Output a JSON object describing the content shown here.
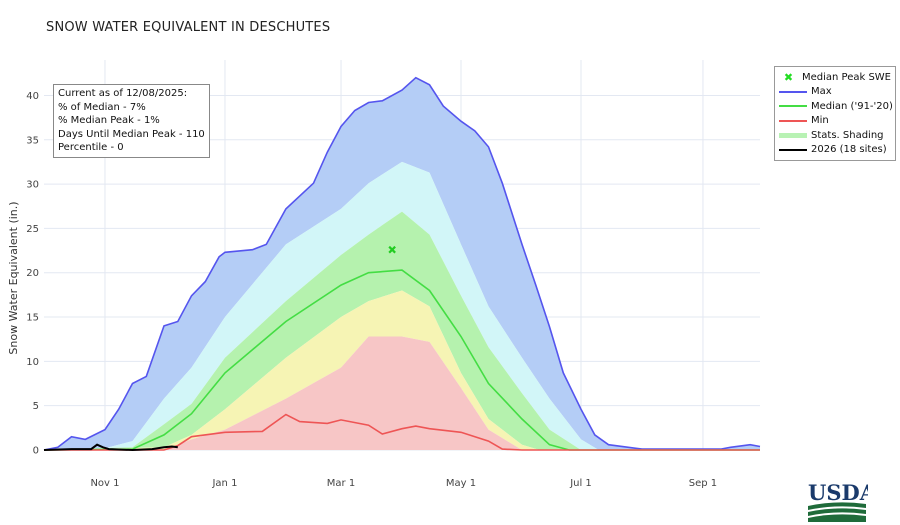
{
  "title": "SNOW WATER EQUIVALENT IN DESCHUTES",
  "info_box": {
    "lines": [
      "Current as of 12/08/2025:",
      "% of Median - 7%",
      "% Median Peak - 1%",
      "Days Until Median Peak - 110",
      "Percentile - 0"
    ]
  },
  "legend": [
    {
      "label": "Median Peak SWE",
      "color": "#22dd22",
      "kind": "marker"
    },
    {
      "label": "Max",
      "color": "#5555ee",
      "kind": "line"
    },
    {
      "label": "Median ('91-'20)",
      "color": "#44dd44",
      "kind": "line"
    },
    {
      "label": "Min",
      "color": "#ee5555",
      "kind": "line"
    },
    {
      "label": "Stats. Shading",
      "color": "#b8f2b4",
      "kind": "band"
    },
    {
      "label": "2026 (18 sites)",
      "color": "#000000",
      "kind": "line"
    }
  ],
  "logo": "USDA",
  "chart_data": {
    "type": "area",
    "title": "SNOW WATER EQUIVALENT IN DESCHUTES",
    "ylabel": "Snow Water Equivalent (in.)",
    "xlim": [
      "2025-10-01",
      "2026-09-30"
    ],
    "ylim": [
      0,
      44
    ],
    "yticks": [
      0,
      5,
      10,
      15,
      20,
      25,
      30,
      35,
      40
    ],
    "xticks": [
      {
        "date": "2025-11-01",
        "label": "Nov 1"
      },
      {
        "date": "2026-01-01",
        "label": "Jan 1"
      },
      {
        "date": "2026-03-01",
        "label": "Mar 1"
      },
      {
        "date": "2026-05-01",
        "label": "May 1"
      },
      {
        "date": "2026-07-01",
        "label": "Jul 1"
      },
      {
        "date": "2026-09-01",
        "label": "Sep 1"
      }
    ],
    "grid": true,
    "legend_position": "right",
    "band_colors": [
      "#b4cdf6",
      "#d2f6f8",
      "#b5f2ae",
      "#f6f4b4",
      "#f7c6c6"
    ],
    "series": {
      "max": [
        [
          "2025-10-01",
          0
        ],
        [
          "2025-10-08",
          0.3
        ],
        [
          "2025-10-15",
          1.5
        ],
        [
          "2025-10-22",
          1.2
        ],
        [
          "2025-11-01",
          2.3
        ],
        [
          "2025-11-08",
          4.6
        ],
        [
          "2025-11-15",
          7.5
        ],
        [
          "2025-11-22",
          8.3
        ],
        [
          "2025-12-01",
          14
        ],
        [
          "2025-12-08",
          14.5
        ],
        [
          "2025-12-15",
          17.4
        ],
        [
          "2025-12-22",
          19
        ],
        [
          "2025-12-29",
          21.8
        ],
        [
          "2026-01-01",
          22.3
        ],
        [
          "2026-01-15",
          22.6
        ],
        [
          "2026-01-22",
          23.2
        ],
        [
          "2026-02-01",
          27.2
        ],
        [
          "2026-02-15",
          30.1
        ],
        [
          "2026-02-22",
          33.6
        ],
        [
          "2026-03-01",
          36.5
        ],
        [
          "2026-03-08",
          38.3
        ],
        [
          "2026-03-15",
          39.2
        ],
        [
          "2026-03-22",
          39.4
        ],
        [
          "2026-04-01",
          40.6
        ],
        [
          "2026-04-08",
          42
        ],
        [
          "2026-04-15",
          41.2
        ],
        [
          "2026-04-22",
          38.8
        ],
        [
          "2026-05-01",
          37.1
        ],
        [
          "2026-05-08",
          36
        ],
        [
          "2026-05-15",
          34.2
        ],
        [
          "2026-05-22",
          30.1
        ],
        [
          "2026-06-01",
          23.2
        ],
        [
          "2026-06-08",
          18.6
        ],
        [
          "2026-06-15",
          13.9
        ],
        [
          "2026-06-22",
          8.7
        ],
        [
          "2026-07-01",
          4.6
        ],
        [
          "2026-07-08",
          1.7
        ],
        [
          "2026-07-15",
          0.6
        ],
        [
          "2026-08-01",
          0.1
        ],
        [
          "2026-09-10",
          0.1
        ],
        [
          "2026-09-15",
          0.3
        ],
        [
          "2026-09-25",
          0.6
        ],
        [
          "2026-09-30",
          0.4
        ]
      ],
      "p90": [
        [
          "2025-10-01",
          0
        ],
        [
          "2025-11-01",
          0.2
        ],
        [
          "2025-11-15",
          1
        ],
        [
          "2025-12-01",
          5.8
        ],
        [
          "2025-12-15",
          9.3
        ],
        [
          "2026-01-01",
          15
        ],
        [
          "2026-02-01",
          23.2
        ],
        [
          "2026-03-01",
          27.2
        ],
        [
          "2026-03-15",
          30.1
        ],
        [
          "2026-04-01",
          32.5
        ],
        [
          "2026-04-15",
          31.3
        ],
        [
          "2026-05-01",
          23.2
        ],
        [
          "2026-05-15",
          16.2
        ],
        [
          "2026-06-01",
          10.4
        ],
        [
          "2026-06-15",
          5.8
        ],
        [
          "2026-07-01",
          1.2
        ],
        [
          "2026-07-10",
          0
        ],
        [
          "2026-09-30",
          0
        ]
      ],
      "p70": [
        [
          "2025-10-01",
          0
        ],
        [
          "2025-11-15",
          0.3
        ],
        [
          "2025-12-01",
          2.9
        ],
        [
          "2025-12-15",
          5.2
        ],
        [
          "2026-01-01",
          10.4
        ],
        [
          "2026-02-01",
          16.8
        ],
        [
          "2026-03-01",
          22
        ],
        [
          "2026-03-15",
          24.3
        ],
        [
          "2026-04-01",
          26.9
        ],
        [
          "2026-04-15",
          24.3
        ],
        [
          "2026-05-01",
          17.4
        ],
        [
          "2026-05-15",
          11.6
        ],
        [
          "2026-06-01",
          6.4
        ],
        [
          "2026-06-15",
          2.3
        ],
        [
          "2026-07-01",
          0
        ],
        [
          "2026-09-30",
          0
        ]
      ],
      "median": [
        [
          "2025-10-01",
          0
        ],
        [
          "2025-11-15",
          0.1
        ],
        [
          "2025-12-01",
          1.7
        ],
        [
          "2025-12-15",
          4.1
        ],
        [
          "2026-01-01",
          8.7
        ],
        [
          "2026-02-01",
          14.5
        ],
        [
          "2026-03-01",
          18.6
        ],
        [
          "2026-03-15",
          20
        ],
        [
          "2026-04-01",
          20.3
        ],
        [
          "2026-04-15",
          18
        ],
        [
          "2026-05-01",
          12.8
        ],
        [
          "2026-05-15",
          7.5
        ],
        [
          "2026-06-01",
          3.5
        ],
        [
          "2026-06-15",
          0.6
        ],
        [
          "2026-06-25",
          0
        ],
        [
          "2026-09-30",
          0
        ]
      ],
      "p30": [
        [
          "2025-10-01",
          0
        ],
        [
          "2025-12-01",
          0.3
        ],
        [
          "2025-12-15",
          1.7
        ],
        [
          "2026-01-01",
          4.6
        ],
        [
          "2026-02-01",
          10.4
        ],
        [
          "2026-03-01",
          15
        ],
        [
          "2026-03-15",
          16.8
        ],
        [
          "2026-04-01",
          18
        ],
        [
          "2026-04-15",
          16.2
        ],
        [
          "2026-05-01",
          8.7
        ],
        [
          "2026-05-15",
          3.5
        ],
        [
          "2026-06-01",
          0.6
        ],
        [
          "2026-06-10",
          0
        ],
        [
          "2026-09-30",
          0
        ]
      ],
      "p10": [
        [
          "2025-10-01",
          0
        ],
        [
          "2025-12-01",
          0
        ],
        [
          "2025-12-15",
          1.2
        ],
        [
          "2026-01-01",
          2.3
        ],
        [
          "2026-02-01",
          5.8
        ],
        [
          "2026-03-01",
          9.3
        ],
        [
          "2026-03-15",
          12.8
        ],
        [
          "2026-04-01",
          12.8
        ],
        [
          "2026-04-15",
          12.2
        ],
        [
          "2026-05-01",
          7
        ],
        [
          "2026-05-15",
          2.3
        ],
        [
          "2026-06-01",
          0
        ],
        [
          "2026-09-30",
          0
        ]
      ],
      "min": [
        [
          "2025-10-01",
          0
        ],
        [
          "2025-12-01",
          0
        ],
        [
          "2025-12-08",
          0.5
        ],
        [
          "2025-12-15",
          1.5
        ],
        [
          "2026-01-01",
          2
        ],
        [
          "2026-01-20",
          2.1
        ],
        [
          "2026-02-01",
          4
        ],
        [
          "2026-02-08",
          3.2
        ],
        [
          "2026-02-22",
          3
        ],
        [
          "2026-03-01",
          3.4
        ],
        [
          "2026-03-15",
          2.8
        ],
        [
          "2026-03-22",
          1.8
        ],
        [
          "2026-04-01",
          2.4
        ],
        [
          "2026-04-08",
          2.7
        ],
        [
          "2026-04-15",
          2.4
        ],
        [
          "2026-05-01",
          2
        ],
        [
          "2026-05-15",
          1
        ],
        [
          "2026-05-22",
          0.1
        ],
        [
          "2026-06-01",
          0
        ],
        [
          "2026-09-30",
          0
        ]
      ],
      "current": [
        [
          "2025-10-01",
          0
        ],
        [
          "2025-10-15",
          0.1
        ],
        [
          "2025-10-25",
          0.1
        ],
        [
          "2025-10-28",
          0.6
        ],
        [
          "2025-10-31",
          0.3
        ],
        [
          "2025-11-03",
          0.1
        ],
        [
          "2025-11-15",
          0
        ],
        [
          "2025-11-25",
          0.1
        ],
        [
          "2025-12-01",
          0.3
        ],
        [
          "2025-12-05",
          0.4
        ],
        [
          "2025-12-08",
          0.3
        ]
      ]
    },
    "median_peak": {
      "date": "2026-03-27",
      "value": 22.6
    }
  }
}
